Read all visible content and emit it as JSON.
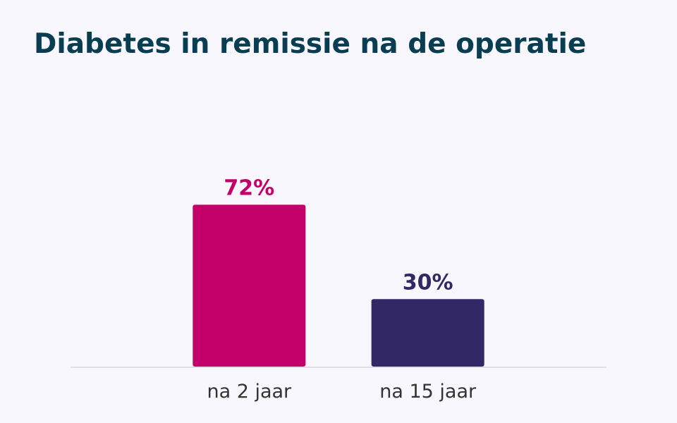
{
  "colors": {
    "background": "#f8f7fd",
    "title": "#083d52",
    "baseline": "#e0dee8",
    "tick_label": "#333333"
  },
  "chart_data": {
    "type": "bar",
    "title": "Diabetes in remissie na de operatie",
    "xlabel": "",
    "ylabel": "",
    "categories": [
      "na 2 jaar",
      "na 15 jaar"
    ],
    "values": [
      72,
      30
    ],
    "value_labels": [
      "72%",
      "30%"
    ],
    "bar_colors": [
      "#c4006a",
      "#322866"
    ],
    "ylim": [
      0,
      100
    ],
    "grid": false,
    "legend": "none"
  }
}
